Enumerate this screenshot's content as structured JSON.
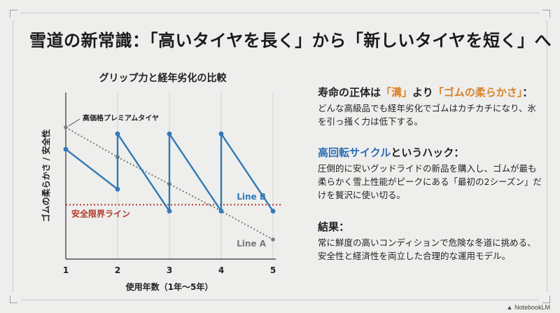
{
  "headline": "雪道の新常識：「高いタイヤを長く」から「新しいタイヤを短く」へ",
  "chart_data": {
    "type": "line",
    "title": "グリップ力と経年劣化の比較",
    "xlabel": "使用年数（1年〜5年）",
    "ylabel": "ゴムの柔らかさ / 安全性",
    "x_ticks": [
      "1",
      "2",
      "3",
      "4",
      "5"
    ],
    "xlim": [
      1,
      5
    ],
    "ylim": [
      0,
      100
    ],
    "grid": "vertical",
    "series": [
      {
        "name": "Line A",
        "label": "高価格プレミアムタイヤ",
        "style": "dotted",
        "color": "#7a7a7a",
        "points": [
          [
            1,
            87
          ],
          [
            2,
            64
          ],
          [
            3,
            43
          ],
          [
            4,
            22
          ],
          [
            5,
            0
          ]
        ]
      },
      {
        "name": "Line B",
        "style": "solid",
        "color": "#2f79b8",
        "points": [
          [
            1,
            70
          ],
          [
            2,
            39
          ],
          [
            2,
            82
          ],
          [
            3,
            22
          ],
          [
            3,
            82
          ],
          [
            4,
            22
          ],
          [
            4,
            82
          ],
          [
            5,
            22
          ]
        ]
      }
    ],
    "reference_line": {
      "label": "安全限界ライン",
      "value": 27,
      "color": "#b13a2a",
      "style": "dotted"
    }
  },
  "side": {
    "block1": {
      "h_pre": "寿命の正体は",
      "h_hl1": "「溝」",
      "h_mid": "より",
      "h_hl2": "「ゴムの柔らかさ」",
      "h_post": "：",
      "body": "どんな高級品でも経年劣化でゴムはカチカチになり、氷を引っ掻く力は低下する。"
    },
    "block2": {
      "h_hl": "高回転サイクル",
      "h_post": "というハック：",
      "body": "圧倒的に安いグッドライドの新品を購入し、ゴムが最も柔らかく雪上性能がピークにある「最初の2シーズン」だけを贅沢に使い切る。"
    },
    "block3": {
      "h": "結果：",
      "body": "常に鮮度の高いコンディションで危険な冬道に挑める、安全性と経済性を両立した合理的な運用モデル。"
    }
  },
  "footer": {
    "brand": "NotebookLM"
  },
  "colors": {
    "accent": "#d9822b",
    "blue": "#2c6fb5",
    "background": "#eeeeec"
  }
}
